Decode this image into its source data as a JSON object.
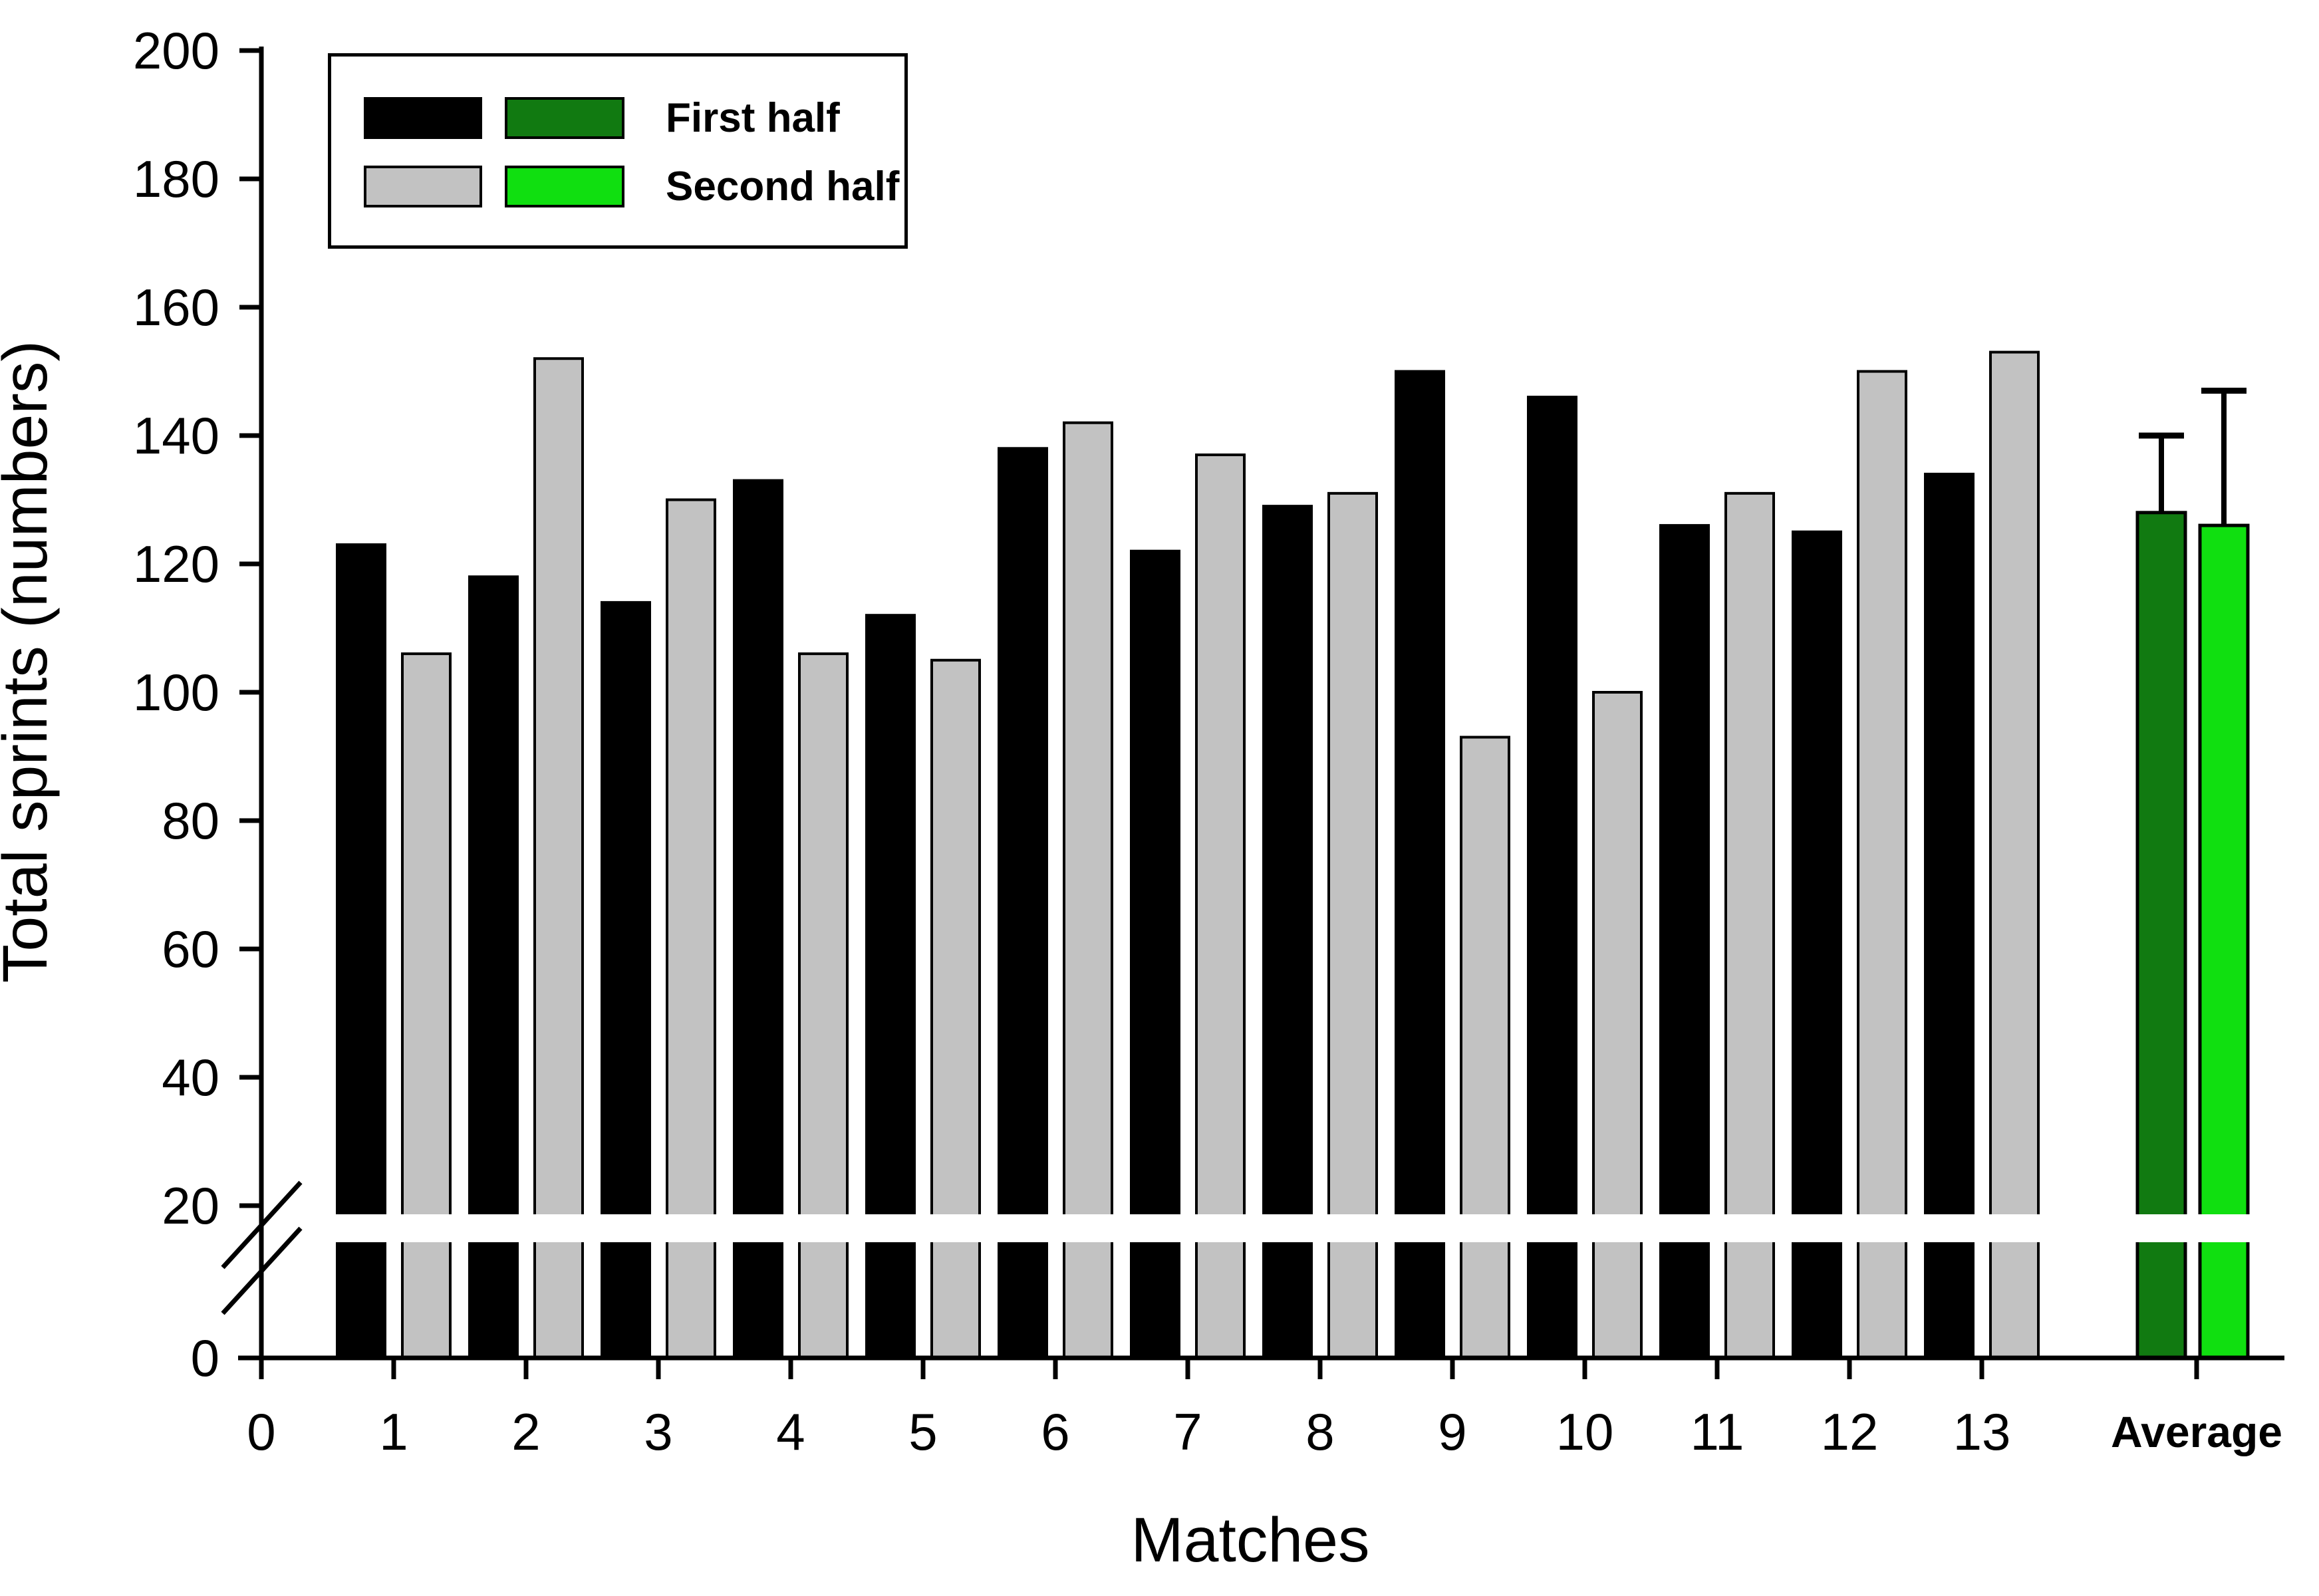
{
  "chart_data": {
    "type": "bar",
    "title": "",
    "xlabel": "Matches",
    "ylabel": "Total sprints (numbers)",
    "categories": [
      "1",
      "2",
      "3",
      "4",
      "5",
      "6",
      "7",
      "8",
      "9",
      "10",
      "11",
      "12",
      "13"
    ],
    "series": [
      {
        "name": "First half",
        "color": "#000000",
        "values": [
          123,
          118,
          114,
          133,
          112,
          138,
          122,
          129,
          150,
          146,
          126,
          125,
          134
        ]
      },
      {
        "name": "Second half",
        "color": "#C2C2C2",
        "values": [
          106,
          152,
          130,
          106,
          105,
          142,
          137,
          131,
          93,
          100,
          131,
          150,
          153
        ]
      }
    ],
    "averages": {
      "label": "Average",
      "bars": [
        {
          "series": "First half",
          "value": 128,
          "error_top": 140,
          "color": "#117A11"
        },
        {
          "series": "Second half",
          "value": 126,
          "error_top": 147,
          "color": "#10DF10"
        }
      ]
    },
    "y_axis": {
      "label": "Total sprints (numbers)",
      "ticks": [
        0,
        20,
        40,
        60,
        80,
        100,
        120,
        140,
        160,
        180,
        200
      ],
      "ylim": [
        0,
        200
      ],
      "axis_break_between": [
        0,
        20
      ]
    },
    "x_axis": {
      "label": "Matches",
      "ticks": [
        "0",
        "1",
        "2",
        "3",
        "4",
        "5",
        "6",
        "7",
        "8",
        "9",
        "10",
        "11",
        "12",
        "13",
        "Average"
      ]
    },
    "legend": {
      "position": "top-left",
      "entries": [
        {
          "label": "First half",
          "swatches": [
            "#000000",
            "#117A11"
          ]
        },
        {
          "label": "Second half",
          "swatches": [
            "#C2C2C2",
            "#10DF10"
          ]
        }
      ]
    },
    "grid": false
  },
  "labels": {
    "xlabel": "Matches",
    "ylabel": "Total sprints (numbers)",
    "legend_first": "First half",
    "legend_second": "Second half"
  }
}
